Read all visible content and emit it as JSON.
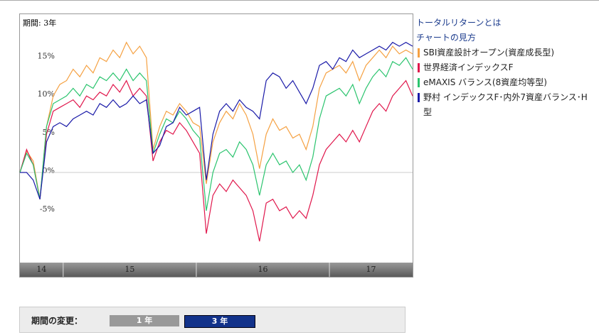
{
  "chart_data": {
    "type": "line",
    "title": "期間: 3年",
    "categories": [
      "14",
      null,
      null,
      null,
      null,
      null,
      null,
      "15",
      null,
      null,
      null,
      null,
      null,
      null,
      null,
      null,
      null,
      null,
      null,
      null,
      null,
      null,
      null,
      null,
      null,
      null,
      null,
      "16",
      null,
      null,
      null,
      null,
      null,
      null,
      null,
      null,
      null,
      null,
      null,
      null,
      null,
      null,
      null,
      null,
      null,
      null,
      null,
      "17",
      null,
      null,
      null,
      null,
      null,
      null,
      null,
      null,
      null,
      null,
      null,
      null
    ],
    "series": [
      {
        "name": "SBI資産設計オープン(資産成長型)",
        "color": "#f5a142",
        "values": [
          0,
          2.8,
          1.5,
          -3.5,
          6,
          10,
          11.5,
          12,
          13.5,
          12.5,
          14,
          13,
          15,
          14.5,
          16,
          15,
          17,
          15.5,
          16.5,
          15,
          3,
          6,
          8,
          7.5,
          9,
          8,
          6.5,
          6,
          -1.5,
          4,
          6.5,
          8,
          7,
          9,
          7.5,
          5,
          0.5,
          5,
          7,
          5.5,
          6,
          4.5,
          5,
          3,
          6,
          11,
          13,
          13.5,
          14,
          13,
          14.5,
          12,
          14,
          15,
          16,
          15,
          16.5,
          15.5,
          16,
          15.5
        ]
      },
      {
        "name": "世界経済インデックスF",
        "color": "#e0174c",
        "values": [
          0,
          3,
          1,
          -3.5,
          5,
          8,
          8.5,
          9,
          9.5,
          8.5,
          10,
          9.5,
          10.5,
          10,
          11.5,
          10.5,
          12,
          10,
          11,
          10,
          1.5,
          4,
          5.5,
          5,
          6.5,
          5.5,
          4,
          2.5,
          -8,
          -3,
          -1.5,
          -2.5,
          -1,
          -2,
          -3,
          -5,
          -9,
          -4,
          -3.5,
          -5,
          -4.5,
          -6,
          -5,
          -6,
          -3,
          1,
          3,
          4,
          5,
          4,
          5.5,
          4,
          6,
          8,
          9,
          8,
          10,
          11,
          12,
          10
        ]
      },
      {
        "name": "eMAXIS バランス(8資産均等型)",
        "color": "#2bc46e",
        "values": [
          0,
          2.5,
          1,
          -3.5,
          6,
          9,
          9.5,
          10,
          11,
          10,
          11.5,
          11,
          12.5,
          12,
          13,
          12,
          13.5,
          12,
          13,
          12,
          2.5,
          5,
          7,
          6.5,
          8,
          7,
          5.5,
          4.5,
          -5,
          0,
          2.5,
          3,
          2,
          4,
          3,
          1,
          -3,
          1,
          2.5,
          1,
          1.5,
          0,
          1,
          -1,
          2,
          7,
          10,
          10.5,
          11,
          10,
          11.5,
          9,
          11,
          12.5,
          13.5,
          12.5,
          14.5,
          14,
          15,
          13.5
        ]
      },
      {
        "name": "野村 インデックスF･内外7資産バランス･H型",
        "color": "#1a1aa8",
        "values": [
          0,
          0,
          -1,
          -3.5,
          4,
          6,
          6.5,
          6,
          7,
          7.5,
          8,
          7.5,
          9,
          8.5,
          9.5,
          8.5,
          9,
          10,
          9,
          9.5,
          2.5,
          3.5,
          6,
          6.5,
          8.5,
          7.5,
          8,
          8.5,
          -1,
          5,
          8,
          9,
          8,
          9.5,
          8.5,
          8,
          7,
          12,
          13,
          12.5,
          11,
          12,
          10.5,
          9,
          11,
          14,
          14.5,
          13.5,
          15,
          14.5,
          16,
          15,
          15.5,
          16,
          16.5,
          16,
          17,
          16.5,
          17,
          16.5
        ]
      }
    ],
    "ylim": [
      -11.6,
      20.5
    ],
    "yticks": [
      {
        "value": -5,
        "label": "-5%"
      },
      {
        "value": 0,
        "label": "0%"
      },
      {
        "value": 5,
        "label": "5%"
      },
      {
        "value": 10,
        "label": "10%"
      },
      {
        "value": 15,
        "label": "15%"
      }
    ],
    "zero_line": true
  },
  "links": [
    "トータルリターンとは",
    "チャートの見方"
  ],
  "period_panel": {
    "label": "期間の変更：",
    "buttons": [
      "1 年",
      "3 年"
    ]
  }
}
